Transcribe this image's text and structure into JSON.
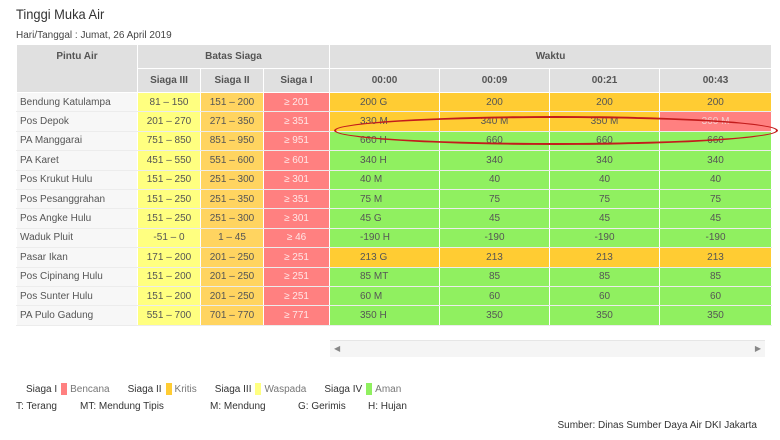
{
  "title": "Tinggi Muka Air",
  "date_line": "Hari/Tanggal : Jumat, 26 April 2019",
  "headers": {
    "pintu_air": "Pintu Air",
    "batas_siaga": "Batas Siaga",
    "waktu": "Waktu",
    "siaga3": "Siaga III",
    "siaga2": "Siaga II",
    "siaga1": "Siaga I",
    "times": [
      "00:00",
      "00:09",
      "00:21",
      "00:43"
    ]
  },
  "rows": [
    {
      "name": "Bendung Katulampa",
      "s3": "81 – 150",
      "s2": "151 – 200",
      "s1": "≥ 201",
      "values": [
        "200 G",
        "200",
        "200",
        "200"
      ],
      "status": "kritis"
    },
    {
      "name": "Pos Depok",
      "s3": "201 – 270",
      "s2": "271 – 350",
      "s1": "≥ 351",
      "values": [
        "330 M",
        "340 M",
        "350 M",
        "360 M"
      ],
      "status": "kritis",
      "statuses": [
        "kritis",
        "kritis",
        "kritis",
        "bencana"
      ]
    },
    {
      "name": "PA Manggarai",
      "s3": "751 – 850",
      "s2": "851 – 950",
      "s1": "≥ 951",
      "values": [
        "660 H",
        "660",
        "660",
        "660"
      ],
      "status": "aman"
    },
    {
      "name": "PA Karet",
      "s3": "451 – 550",
      "s2": "551 – 600",
      "s1": "≥ 601",
      "values": [
        "340 H",
        "340",
        "340",
        "340"
      ],
      "status": "aman"
    },
    {
      "name": "Pos Krukut Hulu",
      "s3": "151 – 250",
      "s2": "251 – 300",
      "s1": "≥ 301",
      "values": [
        "40 M",
        "40",
        "40",
        "40"
      ],
      "status": "aman"
    },
    {
      "name": "Pos Pesanggrahan",
      "s3": "151 – 250",
      "s2": "251 – 350",
      "s1": "≥ 351",
      "values": [
        "75 M",
        "75",
        "75",
        "75"
      ],
      "status": "aman"
    },
    {
      "name": "Pos Angke Hulu",
      "s3": "151 – 250",
      "s2": "251 – 300",
      "s1": "≥ 301",
      "values": [
        "45 G",
        "45",
        "45",
        "45"
      ],
      "status": "aman"
    },
    {
      "name": "Waduk Pluit",
      "s3": "-51 – 0",
      "s2": "1 – 45",
      "s1": "≥ 46",
      "values": [
        "-190 H",
        "-190",
        "-190",
        "-190"
      ],
      "status": "aman"
    },
    {
      "name": "Pasar Ikan",
      "s3": "171 – 200",
      "s2": "201 – 250",
      "s1": "≥ 251",
      "values": [
        "213 G",
        "213",
        "213",
        "213"
      ],
      "status": "kritis"
    },
    {
      "name": "Pos Cipinang Hulu",
      "s3": "151 – 200",
      "s2": "201 – 250",
      "s1": "≥ 251",
      "values": [
        "85 MT",
        "85",
        "85",
        "85"
      ],
      "status": "aman"
    },
    {
      "name": "Pos Sunter Hulu",
      "s3": "151 – 200",
      "s2": "201 – 250",
      "s1": "≥ 251",
      "values": [
        "60 M",
        "60",
        "60",
        "60"
      ],
      "status": "aman"
    },
    {
      "name": "PA Pulo Gadung",
      "s3": "551 – 700",
      "s2": "701 – 770",
      "s1": "≥ 771",
      "values": [
        "350 H",
        "350",
        "350",
        "350"
      ],
      "status": "aman"
    }
  ],
  "legend": [
    {
      "title": "Siaga I",
      "desc": "Bencana",
      "color": "#ff8080"
    },
    {
      "title": "Siaga II",
      "desc": "Kritis",
      "color": "#ffcc33"
    },
    {
      "title": "Siaga III",
      "desc": "Waspada",
      "color": "#ffff80"
    },
    {
      "title": "Siaga IV",
      "desc": "Aman",
      "color": "#90f060"
    }
  ],
  "abbreviations": [
    "T: Terang",
    "MT: Mendung Tipis",
    "M: Mendung",
    "G: Gerimis",
    "H: Hujan"
  ],
  "source": "Sumber: Dinas Sumber Daya Air DKI Jakarta",
  "scroll": {
    "left_icon": "◀",
    "right_icon": "▶"
  },
  "colors": {
    "aman": "#90f060",
    "waspada": "#ffff80",
    "kritis": "#ffcc33",
    "bencana": "#ff8080",
    "highlight_ellipse": "#c31c1c"
  }
}
